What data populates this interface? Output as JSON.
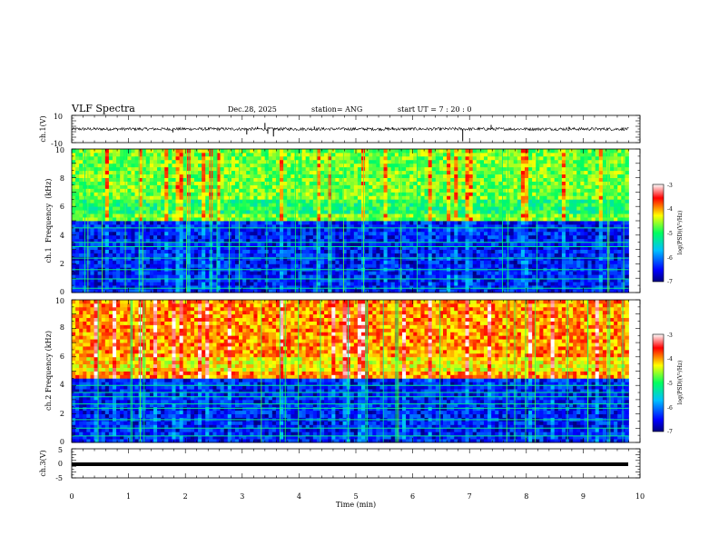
{
  "header": {
    "title": "VLF Spectra",
    "date": "Dec.28, 2025",
    "station": "station= ANG",
    "start": "start  UT =   7 : 20 : 0"
  },
  "chart_data": [
    {
      "type": "line",
      "name": "ch1-waveform",
      "ylabel": "ch.1(V)",
      "ylim": [
        -10,
        10
      ],
      "yticks": [
        "10",
        "-10"
      ],
      "xlim": [
        0,
        10
      ],
      "baseline": 0,
      "spikes": [
        {
          "t": 1.78,
          "v": -2.5
        },
        {
          "t": 3.08,
          "v": -4
        },
        {
          "t": 3.27,
          "v": 1.6
        },
        {
          "t": 3.4,
          "v": 4.5
        },
        {
          "t": 3.45,
          "v": -3.5
        },
        {
          "t": 3.55,
          "v": -5.5
        },
        {
          "t": 4.27,
          "v": 1.8
        },
        {
          "t": 5.65,
          "v": 1.2
        },
        {
          "t": 6.88,
          "v": -9
        },
        {
          "t": 7.38,
          "v": 3
        },
        {
          "t": 8.75,
          "v": 1.6
        }
      ]
    },
    {
      "type": "heatmap",
      "name": "ch1-spectrogram",
      "ylabel": "ch.1\nFrequency  (kHz)",
      "ylim": [
        0,
        10
      ],
      "yticks": [
        "0",
        "2",
        "4",
        "6",
        "8",
        "10"
      ],
      "xlim": [
        0,
        10
      ],
      "data_until_min": 9.8,
      "colorbar": {
        "label": "log(PSD)(V²/Hz)",
        "range": [
          -7,
          -3
        ],
        "ticks": [
          "-3",
          "-4",
          "-5",
          "-6",
          "-7"
        ]
      },
      "noise_floor_khz": 5.0,
      "high_band_level": 0.58,
      "bright_lines_khz": [
        4.5,
        3.5,
        3.2,
        2.4,
        1.6,
        0.95,
        0.3
      ]
    },
    {
      "type": "heatmap",
      "name": "ch2-spectrogram",
      "ylabel": "ch.2\nFrequency  (kHz)",
      "ylim": [
        0,
        10
      ],
      "yticks": [
        "0",
        "2",
        "4",
        "6",
        "8",
        "10"
      ],
      "xlim": [
        0,
        10
      ],
      "data_until_min": 9.8,
      "colorbar": {
        "label": "log(PSD)(V²/Hz)",
        "range": [
          -7,
          -3
        ],
        "ticks": [
          "-3",
          "-4",
          "-5",
          "-6",
          "-7"
        ]
      },
      "noise_floor_khz": 4.5,
      "high_band_level": 0.76,
      "bright_lines_khz": [
        4.0,
        3.5,
        3.2,
        2.7,
        2.4,
        1.6,
        1.0,
        0.45
      ]
    },
    {
      "type": "line",
      "name": "ch3-waveform",
      "ylabel": "ch.3(V)",
      "ylim": [
        -5,
        5
      ],
      "yticks": [
        "5",
        "0",
        "-5"
      ],
      "xlim": [
        0,
        10
      ],
      "baseline": 0
    }
  ],
  "xaxis": {
    "label": "Time  (min)",
    "ticks": [
      "0",
      "1",
      "2",
      "3",
      "4",
      "5",
      "6",
      "7",
      "8",
      "9",
      "10"
    ]
  }
}
